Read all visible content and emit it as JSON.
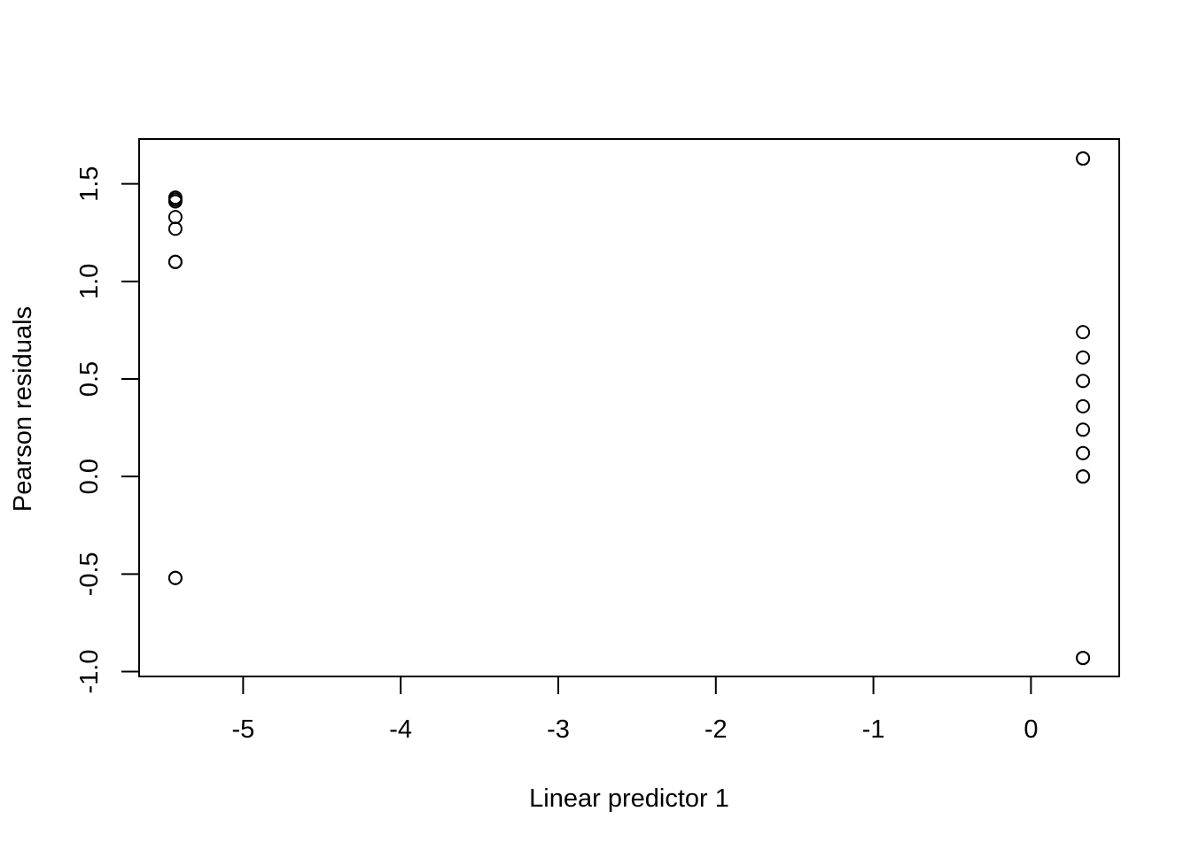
{
  "chart_data": {
    "type": "scatter",
    "title": "",
    "xlabel": "Linear predictor 1",
    "ylabel": "Pearson residuals",
    "xlim": [
      -5.66,
      0.56
    ],
    "ylim": [
      -1.025,
      1.73
    ],
    "x_ticks": [
      -5,
      -4,
      -3,
      -2,
      -1,
      0
    ],
    "x_tick_labels": [
      "-5",
      "-4",
      "-3",
      "-2",
      "-1",
      "0"
    ],
    "y_ticks": [
      -1.0,
      -0.5,
      0.0,
      0.5,
      1.0,
      1.5
    ],
    "y_tick_labels": [
      "-1.0",
      "-0.5",
      "0.0",
      "0.5",
      "1.0",
      "1.5"
    ],
    "grid": false,
    "legend": "none",
    "marker": "open-circle",
    "color": "#000000",
    "points": [
      {
        "x": -5.43,
        "y": 1.43
      },
      {
        "x": -5.43,
        "y": 1.42
      },
      {
        "x": -5.43,
        "y": 1.41
      },
      {
        "x": -5.43,
        "y": 1.33
      },
      {
        "x": -5.43,
        "y": 1.27
      },
      {
        "x": -5.43,
        "y": 1.1
      },
      {
        "x": -5.43,
        "y": 1.1
      },
      {
        "x": -5.43,
        "y": -0.52
      },
      {
        "x": -5.43,
        "y": -0.52
      },
      {
        "x": 0.33,
        "y": 1.63
      },
      {
        "x": 0.33,
        "y": 1.63
      },
      {
        "x": 0.33,
        "y": 0.74
      },
      {
        "x": 0.33,
        "y": 0.61
      },
      {
        "x": 0.33,
        "y": 0.49
      },
      {
        "x": 0.33,
        "y": 0.36
      },
      {
        "x": 0.33,
        "y": 0.24
      },
      {
        "x": 0.33,
        "y": 0.12
      },
      {
        "x": 0.33,
        "y": 0.0
      },
      {
        "x": 0.33,
        "y": 0.0
      },
      {
        "x": 0.33,
        "y": -0.93
      },
      {
        "x": 0.33,
        "y": -0.93
      }
    ]
  }
}
